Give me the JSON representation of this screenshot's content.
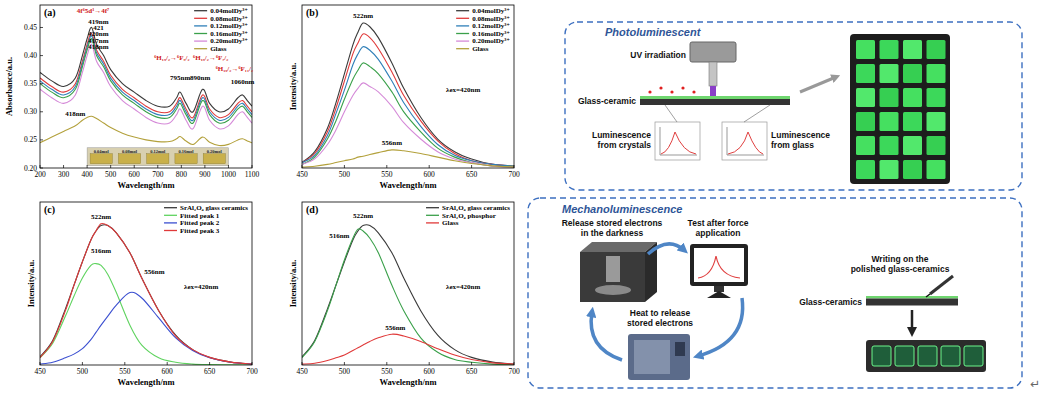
{
  "chart_data": [
    {
      "type": "line",
      "panel_label": "(a)",
      "x_label": "Wavelength/nm",
      "y_label": "Absorbance/a.u.",
      "xlim": [
        200,
        1100
      ],
      "ylim": [
        0.2,
        0.49
      ],
      "xticks": [
        200,
        300,
        400,
        500,
        600,
        700,
        800,
        900,
        1000,
        1100
      ],
      "yticks": [
        {
          "value": 0.2,
          "label": "0.20"
        },
        {
          "value": 0.25,
          "label": "0.25"
        },
        {
          "value": 0.3,
          "label": "0.30"
        },
        {
          "value": 0.35,
          "label": "0.35"
        },
        {
          "value": 0.4,
          "label": "0.40"
        },
        {
          "value": 0.45,
          "label": "0.45"
        }
      ],
      "legend": "upper right",
      "x": [
        200,
        250,
        300,
        350,
        380,
        400,
        419,
        440,
        470,
        500,
        550,
        600,
        650,
        700,
        750,
        780,
        795,
        820,
        850,
        890,
        920,
        960,
        1000,
        1040,
        1060,
        1080,
        1100
      ],
      "series": [
        {
          "name": "0.04molDy³⁺",
          "color": "#3a3a3a",
          "values": [
            0.37,
            0.355,
            0.345,
            0.36,
            0.4,
            0.43,
            0.45,
            0.42,
            0.4,
            0.375,
            0.35,
            0.335,
            0.32,
            0.31,
            0.31,
            0.325,
            0.335,
            0.315,
            0.3,
            0.34,
            0.315,
            0.3,
            0.305,
            0.325,
            0.33,
            0.32,
            0.31
          ]
        },
        {
          "name": "0.08molDy³⁺",
          "color": "#e03a3a",
          "values": [
            0.36,
            0.345,
            0.335,
            0.35,
            0.39,
            0.42,
            0.44,
            0.41,
            0.39,
            0.365,
            0.34,
            0.325,
            0.31,
            0.3,
            0.3,
            0.315,
            0.325,
            0.305,
            0.29,
            0.33,
            0.305,
            0.29,
            0.295,
            0.315,
            0.32,
            0.31,
            0.3
          ]
        },
        {
          "name": "0.12molDy³⁺",
          "color": "#2f7fb8",
          "values": [
            0.355,
            0.34,
            0.33,
            0.345,
            0.385,
            0.415,
            0.435,
            0.405,
            0.385,
            0.36,
            0.335,
            0.32,
            0.305,
            0.295,
            0.295,
            0.31,
            0.32,
            0.3,
            0.285,
            0.325,
            0.3,
            0.285,
            0.29,
            0.31,
            0.315,
            0.305,
            0.295
          ]
        },
        {
          "name": "0.16molDy³⁺",
          "color": "#3aa04a",
          "values": [
            0.35,
            0.335,
            0.325,
            0.34,
            0.38,
            0.41,
            0.43,
            0.4,
            0.38,
            0.355,
            0.33,
            0.315,
            0.3,
            0.29,
            0.29,
            0.305,
            0.315,
            0.295,
            0.28,
            0.32,
            0.295,
            0.28,
            0.285,
            0.305,
            0.31,
            0.3,
            0.29
          ]
        },
        {
          "name": "0.20molDy³⁺",
          "color": "#d58ad8",
          "values": [
            0.34,
            0.325,
            0.315,
            0.33,
            0.37,
            0.4,
            0.42,
            0.39,
            0.37,
            0.345,
            0.32,
            0.305,
            0.29,
            0.28,
            0.28,
            0.295,
            0.305,
            0.285,
            0.27,
            0.31,
            0.285,
            0.27,
            0.275,
            0.295,
            0.3,
            0.29,
            0.28
          ]
        },
        {
          "name": "Glass",
          "color": "#b3a13c",
          "values": [
            0.245,
            0.255,
            0.265,
            0.275,
            0.285,
            0.29,
            0.292,
            0.288,
            0.28,
            0.272,
            0.262,
            0.255,
            0.25,
            0.247,
            0.247,
            0.252,
            0.256,
            0.248,
            0.242,
            0.255,
            0.246,
            0.24,
            0.242,
            0.25,
            0.252,
            0.248,
            0.245
          ]
        }
      ],
      "annotations": [
        {
          "text": "4f⁶5d¹→4f⁷",
          "x": 425,
          "y": 0.476,
          "color": "#d02020"
        },
        {
          "text": "419nm",
          "x": 448,
          "y": 0.456,
          "color": "#000000"
        },
        {
          "text": "421",
          "x": 448,
          "y": 0.445,
          "color": "#000000"
        },
        {
          "text": "420nm",
          "x": 448,
          "y": 0.434,
          "color": "#000000"
        },
        {
          "text": "417nm",
          "x": 448,
          "y": 0.423,
          "color": "#000000"
        },
        {
          "text": "418nm",
          "x": 448,
          "y": 0.412,
          "color": "#000000"
        },
        {
          "text": "⁶H₁₅/₂→⁶F₅/₂",
          "x": 760,
          "y": 0.392,
          "color": "#d02020"
        },
        {
          "text": "795nm",
          "x": 795,
          "y": 0.356,
          "color": "#000000"
        },
        {
          "text": "⁶H₁₅/₂→⁶F₇/₂",
          "x": 925,
          "y": 0.392,
          "color": "#d02020"
        },
        {
          "text": "890nm",
          "x": 880,
          "y": 0.356,
          "color": "#000000"
        },
        {
          "text": "⁶H₁₅/₂→⁶F₁₁/₂",
          "x": 1025,
          "y": 0.372,
          "color": "#d02020"
        },
        {
          "text": "1060nm",
          "x": 1060,
          "y": 0.349,
          "color": "#000000"
        },
        {
          "text": "418nm",
          "x": 350,
          "y": 0.293,
          "color": "#000000"
        }
      ],
      "inset_labels": [
        "0.04mol",
        "0.08mol",
        "0.12mol",
        "0.16mol",
        "0.20mol"
      ]
    },
    {
      "type": "line",
      "panel_label": "(b)",
      "x_label": "Wavelength/nm",
      "y_label": "Intensity/a.u.",
      "xlim": [
        450,
        700
      ],
      "ylim": [
        0,
        90
      ],
      "xticks": [
        450,
        500,
        550,
        600,
        650,
        700
      ],
      "tick_labels": "x",
      "legend": "upper right",
      "x": [
        450,
        465,
        480,
        490,
        500,
        510,
        516,
        522,
        530,
        540,
        556,
        570,
        590,
        610,
        630,
        650,
        675,
        700
      ],
      "series": [
        {
          "name": "0.04molDy³⁺",
          "color": "#3a3a3a",
          "values": [
            3,
            9,
            22,
            36,
            52,
            68,
            75,
            80,
            78,
            72,
            58,
            44,
            28,
            16,
            9,
            5,
            2,
            1
          ]
        },
        {
          "name": "0.08molDy³⁺",
          "color": "#e03a3a",
          "values": [
            3,
            8,
            20,
            33,
            48,
            63,
            69,
            74,
            72,
            66,
            53,
            40,
            26,
            15,
            8,
            4,
            2,
            1
          ]
        },
        {
          "name": "0.12molDy³⁺",
          "color": "#2f7fb8",
          "values": [
            3,
            7,
            18,
            30,
            43,
            57,
            63,
            67,
            65,
            60,
            48,
            36,
            23,
            13,
            7,
            4,
            2,
            1
          ]
        },
        {
          "name": "0.16molDy³⁺",
          "color": "#3aa04a",
          "values": [
            2,
            6,
            16,
            26,
            38,
            49,
            54,
            58,
            56,
            52,
            42,
            31,
            20,
            11,
            6,
            3,
            1,
            1
          ]
        },
        {
          "name": "0.20molDy³⁺",
          "color": "#d58ad8",
          "values": [
            2,
            5,
            13,
            21,
            31,
            40,
            44,
            47,
            45,
            42,
            34,
            25,
            16,
            9,
            5,
            3,
            1,
            0.5
          ]
        },
        {
          "name": "Glass",
          "color": "#b3a13c",
          "values": [
            0.5,
            1,
            2,
            3,
            4,
            5,
            6,
            6.5,
            7.5,
            8.5,
            10,
            9.5,
            8,
            6,
            4,
            2.5,
            1.2,
            0.5
          ]
        }
      ],
      "annotations": [
        {
          "text": "522nm",
          "x": 522,
          "y": 83,
          "color": "#000000"
        },
        {
          "text": "556nm",
          "x": 556,
          "y": 12.5,
          "color": "#000000"
        },
        {
          "text": "λex=420nm",
          "x": 640,
          "y": 42,
          "color": "#000000"
        }
      ]
    },
    {
      "type": "line",
      "panel_label": "(c)",
      "x_label": "Wavelength/nm",
      "y_label": "Intensity/a.u.",
      "xlim": [
        450,
        700
      ],
      "ylim": [
        0,
        90
      ],
      "xticks": [
        450,
        500,
        550,
        600,
        650,
        700
      ],
      "tick_labels": "x",
      "legend": "upper right",
      "x": [
        450,
        465,
        480,
        490,
        500,
        510,
        516,
        522,
        530,
        540,
        556,
        570,
        590,
        610,
        630,
        650,
        675,
        700
      ],
      "series": [
        {
          "name": "SrAl₂O₄ glass ceramics",
          "color": "#3a3a3a",
          "values": [
            4.5,
            13.5,
            31,
            44,
            57,
            69,
            74,
            77,
            77,
            73,
            62,
            48,
            30,
            16.5,
            8.5,
            4.2,
            1.6,
            0.5
          ]
        },
        {
          "name": "Fitted peak 1",
          "color": "#5fd35f",
          "values": [
            4,
            12,
            27,
            38,
            48,
            55,
            56,
            55,
            50,
            40,
            22,
            11,
            4,
            1.5,
            0.5,
            0.2,
            0.1,
            0
          ]
        },
        {
          "name": "Fitted peak 2",
          "color": "#3b4fd0",
          "values": [
            0.5,
            1.5,
            4,
            6,
            9,
            14,
            18,
            22,
            27,
            33,
            40,
            37,
            26,
            15,
            8,
            4,
            1.5,
            0.5
          ]
        },
        {
          "name": "Fitted peak 3",
          "color": "#e03a3a",
          "values": [
            4,
            13,
            30,
            44,
            57,
            69,
            74,
            78,
            77,
            73,
            62,
            48,
            30,
            16,
            8.5,
            4.2,
            1.6,
            0.5
          ]
        }
      ],
      "annotations": [
        {
          "text": "522nm",
          "x": 522,
          "y": 80.5,
          "color": "#000000"
        },
        {
          "text": "516nm",
          "x": 522,
          "y": 62,
          "color": "#000000"
        },
        {
          "text": "556nm",
          "x": 585,
          "y": 50,
          "color": "#000000"
        },
        {
          "text": "λex=420nm",
          "x": 640,
          "y": 42,
          "color": "#000000"
        }
      ]
    },
    {
      "type": "line",
      "panel_label": "(d)",
      "x_label": "Wavelength/nm",
      "y_label": "Intensity/a.u.",
      "xlim": [
        450,
        700
      ],
      "ylim": [
        0,
        90
      ],
      "xticks": [
        450,
        500,
        550,
        600,
        650,
        700
      ],
      "tick_labels": "x",
      "legend": "upper right",
      "x": [
        450,
        465,
        480,
        490,
        500,
        510,
        516,
        522,
        530,
        540,
        556,
        570,
        590,
        610,
        630,
        650,
        675,
        700
      ],
      "series": [
        {
          "name": "SrAl₂O₄ glass ceramics",
          "color": "#3a3a3a",
          "values": [
            4.5,
            13.5,
            31,
            44,
            57,
            69,
            74,
            77,
            77,
            73,
            62,
            48,
            30,
            16.5,
            8.5,
            4.2,
            1.6,
            0.5
          ]
        },
        {
          "name": "SrAl₂O₄ phosphor",
          "color": "#3aa04a",
          "values": [
            4,
            13,
            30,
            44,
            58,
            70,
            75,
            74,
            70,
            62,
            44,
            30,
            15,
            7,
            3,
            1.5,
            0.5,
            0.2
          ]
        },
        {
          "name": "Glass",
          "color": "#e03a3a",
          "values": [
            0.5,
            1,
            2.5,
            4,
            5.5,
            8,
            9.5,
            11,
            13,
            15,
            17,
            16,
            13,
            9,
            5.5,
            3,
            1.2,
            0.5
          ]
        }
      ],
      "annotations": [
        {
          "text": "522nm",
          "x": 522,
          "y": 81,
          "color": "#000000"
        },
        {
          "text": "516nm",
          "x": 494,
          "y": 70,
          "color": "#000000"
        },
        {
          "text": "556nm",
          "x": 560,
          "y": 19.5,
          "color": "#000000"
        },
        {
          "text": "λex=420nm",
          "x": 640,
          "y": 42,
          "color": "#000000"
        }
      ]
    }
  ],
  "diagram": {
    "photoluminescent": {
      "title": "Photoluminescent",
      "uv": "UV irradiation",
      "sample": "Glass-ceramic",
      "crystals": [
        "Luminescence",
        "from crystals"
      ],
      "glass": [
        "Luminescence",
        "from glass"
      ]
    },
    "mechanoluminescence": {
      "title": "Mechanoluminescence",
      "release": [
        "Release stored electrons",
        "in the darkness"
      ],
      "test": [
        "Test after force",
        "application"
      ],
      "heat": [
        "Heat to release",
        "stored electrons"
      ],
      "writing": [
        "Writing on the",
        "polished glass-ceramics"
      ],
      "sample": "Glass-ceramics"
    },
    "return_mark": "↵"
  }
}
